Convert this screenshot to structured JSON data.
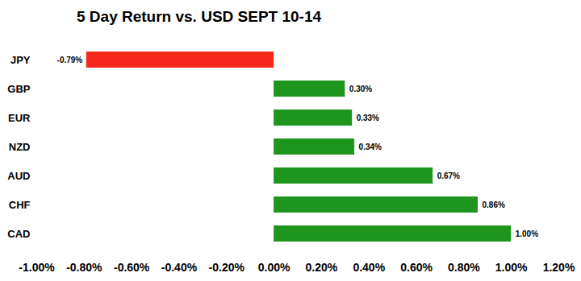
{
  "chart_data": {
    "type": "bar",
    "title": "5 Day Return vs. USD SEPT 10-14",
    "orientation": "horizontal",
    "categories": [
      "JPY",
      "GBP",
      "EUR",
      "NZD",
      "AUD",
      "CHF",
      "CAD"
    ],
    "values": [
      -0.79,
      0.3,
      0.33,
      0.34,
      0.67,
      0.86,
      1.0
    ],
    "value_labels": [
      "-0.79%",
      "0.30%",
      "0.33%",
      "0.34%",
      "0.67%",
      "0.86%",
      "1.00%"
    ],
    "colors": [
      "#f5281b",
      "#1e961e",
      "#1e961e",
      "#1e961e",
      "#1e961e",
      "#1e961e",
      "#1e961e"
    ],
    "xlim": [
      -1.0,
      1.2
    ],
    "xticks": [
      {
        "value": -1.0,
        "label": "-1.00%"
      },
      {
        "value": -0.8,
        "label": "-0.80%"
      },
      {
        "value": -0.6,
        "label": "-0.60%"
      },
      {
        "value": -0.4,
        "label": "-0.40%"
      },
      {
        "value": -0.2,
        "label": "-0.20%"
      },
      {
        "value": 0.0,
        "label": "0.00%"
      },
      {
        "value": 0.2,
        "label": "0.20%"
      },
      {
        "value": 0.4,
        "label": "0.40%"
      },
      {
        "value": 0.6,
        "label": "0.60%"
      },
      {
        "value": 0.8,
        "label": "0.80%"
      },
      {
        "value": 1.0,
        "label": "1.00%"
      },
      {
        "value": 1.2,
        "label": "1.20%"
      }
    ],
    "grid": false,
    "data_labels": true
  }
}
